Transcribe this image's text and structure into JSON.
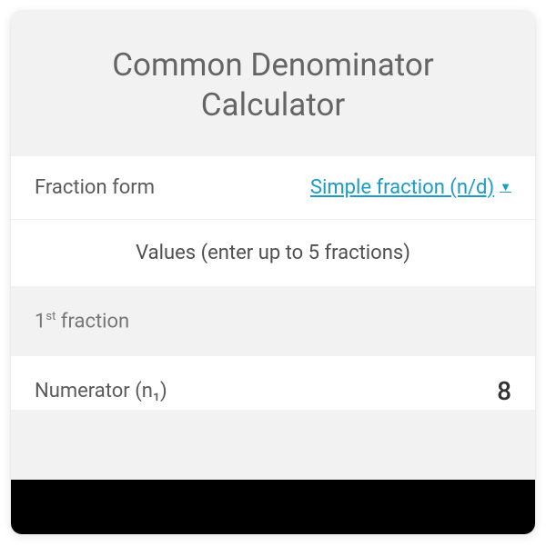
{
  "title": "Common Denominator Calculator",
  "form_row": {
    "label": "Fraction form",
    "selected": "Simple fraction (n/d)"
  },
  "values_header": "Values (enter up to 5 fractions)",
  "fraction1": {
    "ordinal_num": "1",
    "ordinal_suffix": "st",
    "label_rest": " fraction"
  },
  "numerator_row": {
    "label": "Numerator (n₁)",
    "value": "8"
  },
  "colors": {
    "card_bg": "#f2f2f2",
    "row_bg": "#ffffff",
    "title_color": "#656565",
    "label_color": "#5a5a5a",
    "link_color": "#1a9cc7",
    "border_color": "#ededed"
  }
}
